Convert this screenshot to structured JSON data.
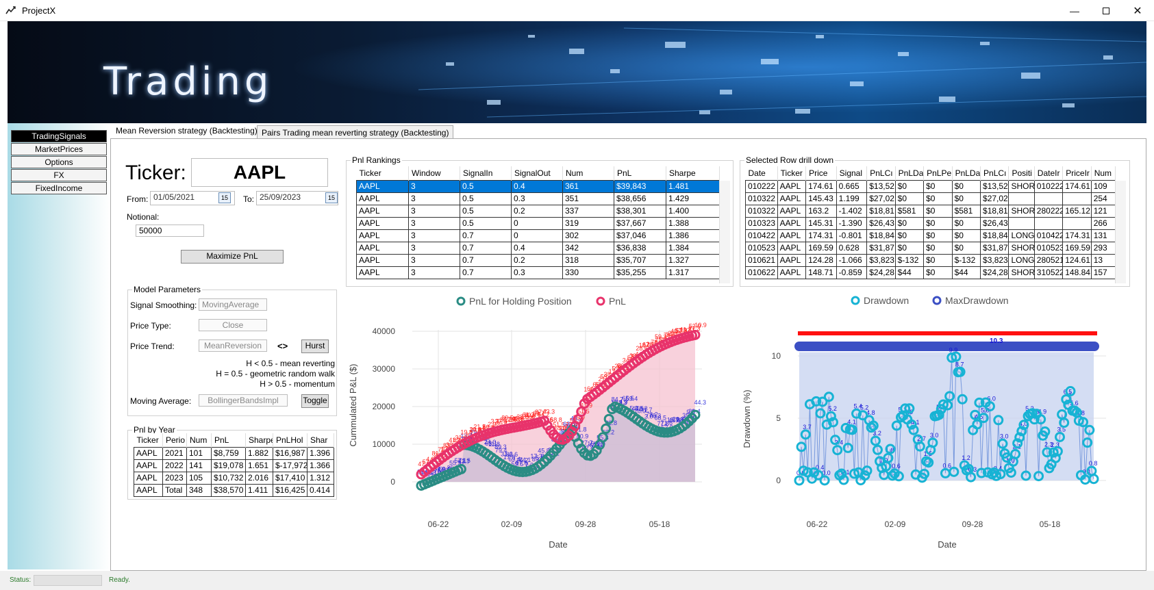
{
  "window": {
    "title": "ProjectX"
  },
  "banner": {
    "text": "Trading"
  },
  "nav": {
    "items": [
      "TradingSignals",
      "MarketPrices",
      "Options",
      "FX",
      "FixedIncome"
    ]
  },
  "tabs": [
    "Mean Reversion strategy (Backtesting)",
    "Pairs Trading mean reverting strategy (Backtesting)"
  ],
  "form": {
    "ticker_label": "Ticker:",
    "ticker_value": "AAPL",
    "from_label": "From:",
    "from_value": "01/05/2021",
    "to_label": "To:",
    "to_value": "25/09/2023",
    "calendar_day": "15",
    "notional_label": "Notional:",
    "notional_value": "50000",
    "maximize_label": "Maximize PnL"
  },
  "model": {
    "title": "Model Parameters",
    "signal_smoothing_label": "Signal Smoothing:",
    "signal_smoothing_value": "MovingAverage",
    "price_type_label": "Price Type:",
    "price_type_value": "Close",
    "price_trend_label": "Price Trend:",
    "price_trend_value": "MeanReversion",
    "arrows": "<>",
    "hurst_label": "Hurst",
    "hurst_lines": [
      "H < 0.5 - mean reverting",
      "H = 0.5 - geometric random walk",
      "H > 0.5 - momentum"
    ],
    "moving_avg_label": "Moving Average:",
    "moving_avg_value": "BollingerBandsImpl",
    "toggle_label": "Toggle"
  },
  "pnl_by_year": {
    "title": "Pnl by Year",
    "columns": [
      "Ticker",
      "Perio",
      "Num",
      "PnL",
      "Sharpe",
      "PnLHol",
      "Shar"
    ],
    "rows": [
      [
        "AAPL",
        "2021",
        "101",
        "$8,759",
        "1.882",
        "$16,987",
        "1.396"
      ],
      [
        "AAPL",
        "2022",
        "141",
        "$19,078",
        "1.651",
        "$-17,972",
        "1.366"
      ],
      [
        "AAPL",
        "2023",
        "105",
        "$10,732",
        "2.016",
        "$17,410",
        "1.312"
      ],
      [
        "AAPL",
        "Total",
        "348",
        "$38,570",
        "1.411",
        "$16,425",
        "0.414"
      ]
    ]
  },
  "pnl_rankings": {
    "title": "Pnl Rankings",
    "columns": [
      "Ticker",
      "Window",
      "SignalIn",
      "SignalOut",
      "Num",
      "PnL",
      "Sharpe"
    ],
    "rows": [
      [
        "AAPL",
        "3",
        "0.5",
        "0.4",
        "361",
        "$39,843",
        "1.481"
      ],
      [
        "AAPL",
        "3",
        "0.5",
        "0.3",
        "351",
        "$38,656",
        "1.429"
      ],
      [
        "AAPL",
        "3",
        "0.5",
        "0.2",
        "337",
        "$38,301",
        "1.400"
      ],
      [
        "AAPL",
        "3",
        "0.5",
        "0",
        "319",
        "$37,667",
        "1.388"
      ],
      [
        "AAPL",
        "3",
        "0.7",
        "0",
        "302",
        "$37,046",
        "1.386"
      ],
      [
        "AAPL",
        "3",
        "0.7",
        "0.4",
        "342",
        "$36,838",
        "1.384"
      ],
      [
        "AAPL",
        "3",
        "0.7",
        "0.2",
        "318",
        "$35,707",
        "1.327"
      ],
      [
        "AAPL",
        "3",
        "0.7",
        "0.3",
        "330",
        "$35,255",
        "1.317"
      ]
    ]
  },
  "drilldown": {
    "title": "Selected Row drill down",
    "columns": [
      "Date",
      "Ticker",
      "Price",
      "Signal",
      "PnLCı",
      "PnLDa",
      "PnLPe",
      "PnLDa",
      "PnLCı",
      "Positi",
      "DateIr",
      "PriceIr",
      "Num"
    ],
    "rows": [
      [
        "010222",
        "AAPL",
        "174.61",
        "0.665",
        "$13,52",
        "$0",
        "$0",
        "$0",
        "$13,52",
        "SHORT",
        "010222",
        "174.61",
        "109"
      ],
      [
        "010322",
        "AAPL",
        "145.43",
        "1.199",
        "$27,02",
        "$0",
        "$0",
        "$0",
        "$27,02",
        "",
        "",
        "",
        "254"
      ],
      [
        "010322",
        "AAPL",
        "163.2",
        "-1.402",
        "$18,81",
        "$581",
        "$0",
        "$581",
        "$18,81",
        "SHORT",
        "280222",
        "165.12",
        "121"
      ],
      [
        "010323",
        "AAPL",
        "145.31",
        "-1.390",
        "$26,43",
        "$0",
        "$0",
        "$0",
        "$26,43",
        "",
        "",
        "",
        "266"
      ],
      [
        "010422",
        "AAPL",
        "174.31",
        "-0.801",
        "$18,84",
        "$0",
        "$0",
        "$0",
        "$18,84",
        "LONG",
        "010422",
        "174.31",
        "131"
      ],
      [
        "010523",
        "AAPL",
        "169.59",
        "0.628",
        "$31,87",
        "$0",
        "$0",
        "$0",
        "$31,87",
        "SHORT",
        "010523",
        "169.59",
        "293"
      ],
      [
        "010621",
        "AAPL",
        "124.28",
        "-1.066",
        "$3,823",
        "$-132",
        "$0",
        "$-132",
        "$3,823",
        "LONG",
        "280521",
        "124.61",
        "13"
      ],
      [
        "010622",
        "AAPL",
        "148.71",
        "-0.859",
        "$24,28",
        "$44",
        "$0",
        "$44",
        "$24,28",
        "SHORT",
        "310522",
        "148.84",
        "157"
      ]
    ]
  },
  "pnl_chart": {
    "legend": [
      "PnL for Holding Position",
      "PnL"
    ],
    "ylabel": "Cummulated P&L ($)",
    "xlabel": "Date",
    "yticks": [
      "40000",
      "30000",
      "20000",
      "10000",
      "0"
    ],
    "xticks": [
      "06-22",
      "02-09",
      "09-28",
      "05-18"
    ],
    "colors": {
      "holding": "#2a8c84",
      "pnl": "#e8336b",
      "labels_blue": "#1414d6",
      "labels_red": "#ff1010"
    }
  },
  "drawdown_chart": {
    "legend": [
      "Drawdown",
      "MaxDrawdown"
    ],
    "ylabel": "Drawdown (%)",
    "xlabel": "Date",
    "yticks": [
      "10",
      "5",
      "0"
    ],
    "xticks": [
      "06-22",
      "02-09",
      "09-28",
      "05-18"
    ],
    "max_label": "10.3",
    "colors": {
      "drawdown": "#17b3d4",
      "maxdrawdown": "#3b4fc4",
      "redline": "#ff1010"
    }
  },
  "status": {
    "label": "Status:",
    "text": "Ready."
  }
}
